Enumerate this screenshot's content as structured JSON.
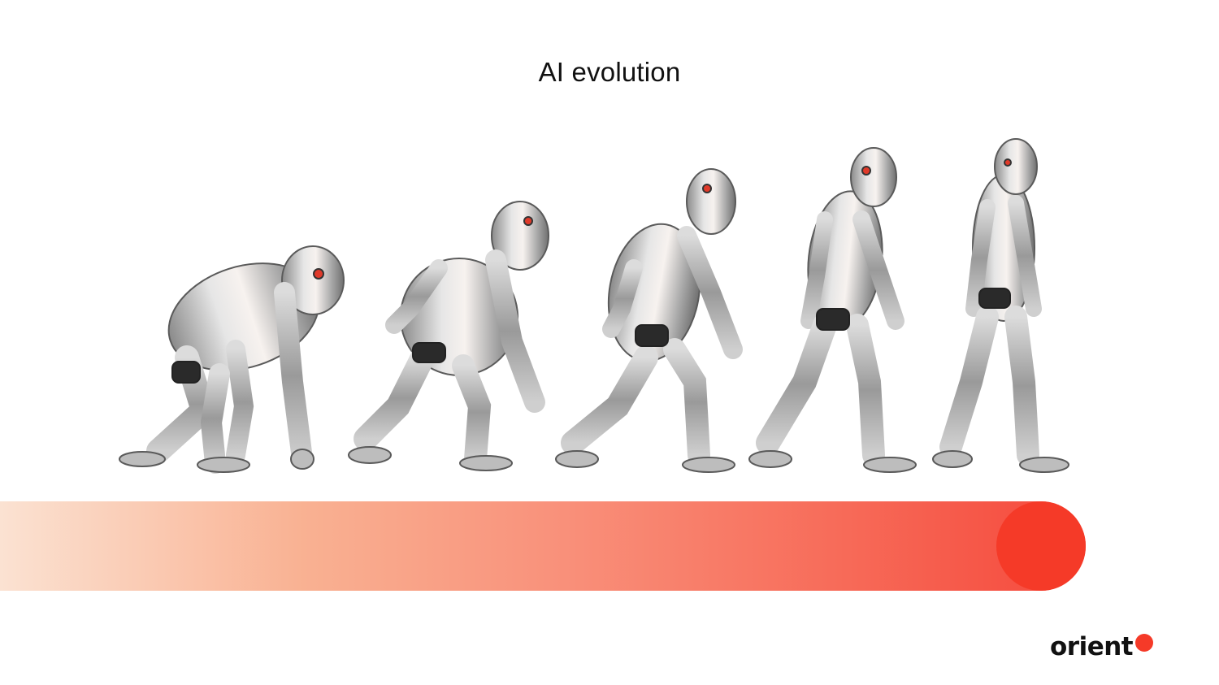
{
  "title": "AI evolution",
  "logo": {
    "text": "orient",
    "dot_color": "#f53a28"
  },
  "progress_bar": {
    "start_color": "#fbe2d2",
    "end_color": "#f5483b",
    "knob_color": "#f53a28"
  },
  "figures": [
    {
      "stage": 1,
      "icon": "crouching-robot-ape-icon"
    },
    {
      "stage": 2,
      "icon": "hunched-robot-ape-icon"
    },
    {
      "stage": 3,
      "icon": "stooped-robot-icon"
    },
    {
      "stage": 4,
      "icon": "walking-robot-icon"
    },
    {
      "stage": 5,
      "icon": "upright-robot-icon"
    }
  ]
}
